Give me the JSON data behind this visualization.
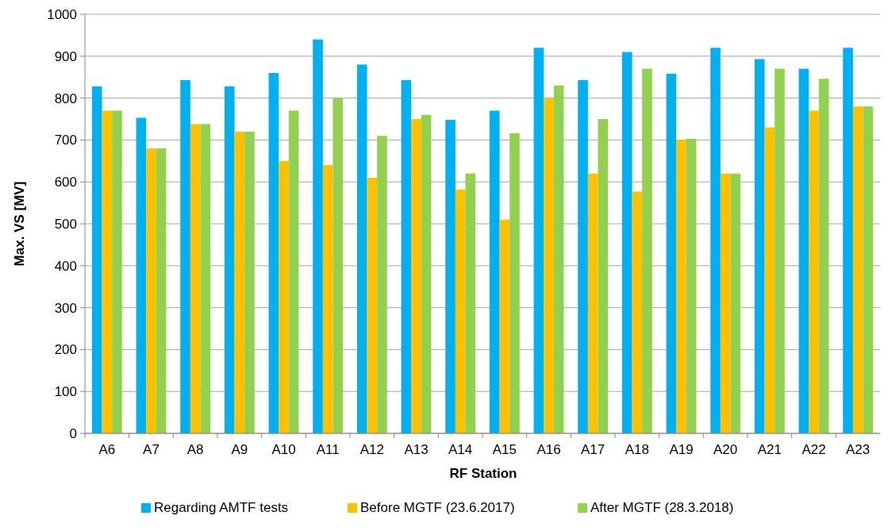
{
  "chart_data": {
    "type": "bar",
    "xlabel": "RF Station",
    "ylabel": "Max. VS [MV]",
    "categories": [
      "A6",
      "A7",
      "A8",
      "A9",
      "A10",
      "A11",
      "A12",
      "A13",
      "A14",
      "A15",
      "A16",
      "A17",
      "A18",
      "A19",
      "A20",
      "A21",
      "A22",
      "A23"
    ],
    "series": [
      {
        "name": "Regarding AMTF tests",
        "color": "#00b0f0",
        "values": [
          828,
          753,
          843,
          828,
          860,
          940,
          880,
          843,
          748,
          770,
          920,
          843,
          910,
          858,
          920,
          893,
          870,
          920
        ]
      },
      {
        "name": "Before MGTF (23.6.2017)",
        "color": "#ffc000",
        "values": [
          770,
          680,
          738,
          720,
          650,
          640,
          610,
          750,
          582,
          510,
          800,
          620,
          577,
          700,
          620,
          730,
          770,
          780
        ]
      },
      {
        "name": "After MGTF (28.3.2018)",
        "color": "#92d050",
        "values": [
          770,
          680,
          738,
          720,
          770,
          800,
          710,
          760,
          620,
          716,
          830,
          750,
          870,
          703,
          620,
          870,
          846,
          780
        ]
      }
    ],
    "ylim": [
      0,
      1000
    ],
    "yticks": [
      0,
      100,
      200,
      300,
      400,
      500,
      600,
      700,
      800,
      900,
      1000
    ],
    "grid": "y",
    "legend": "bottom"
  }
}
